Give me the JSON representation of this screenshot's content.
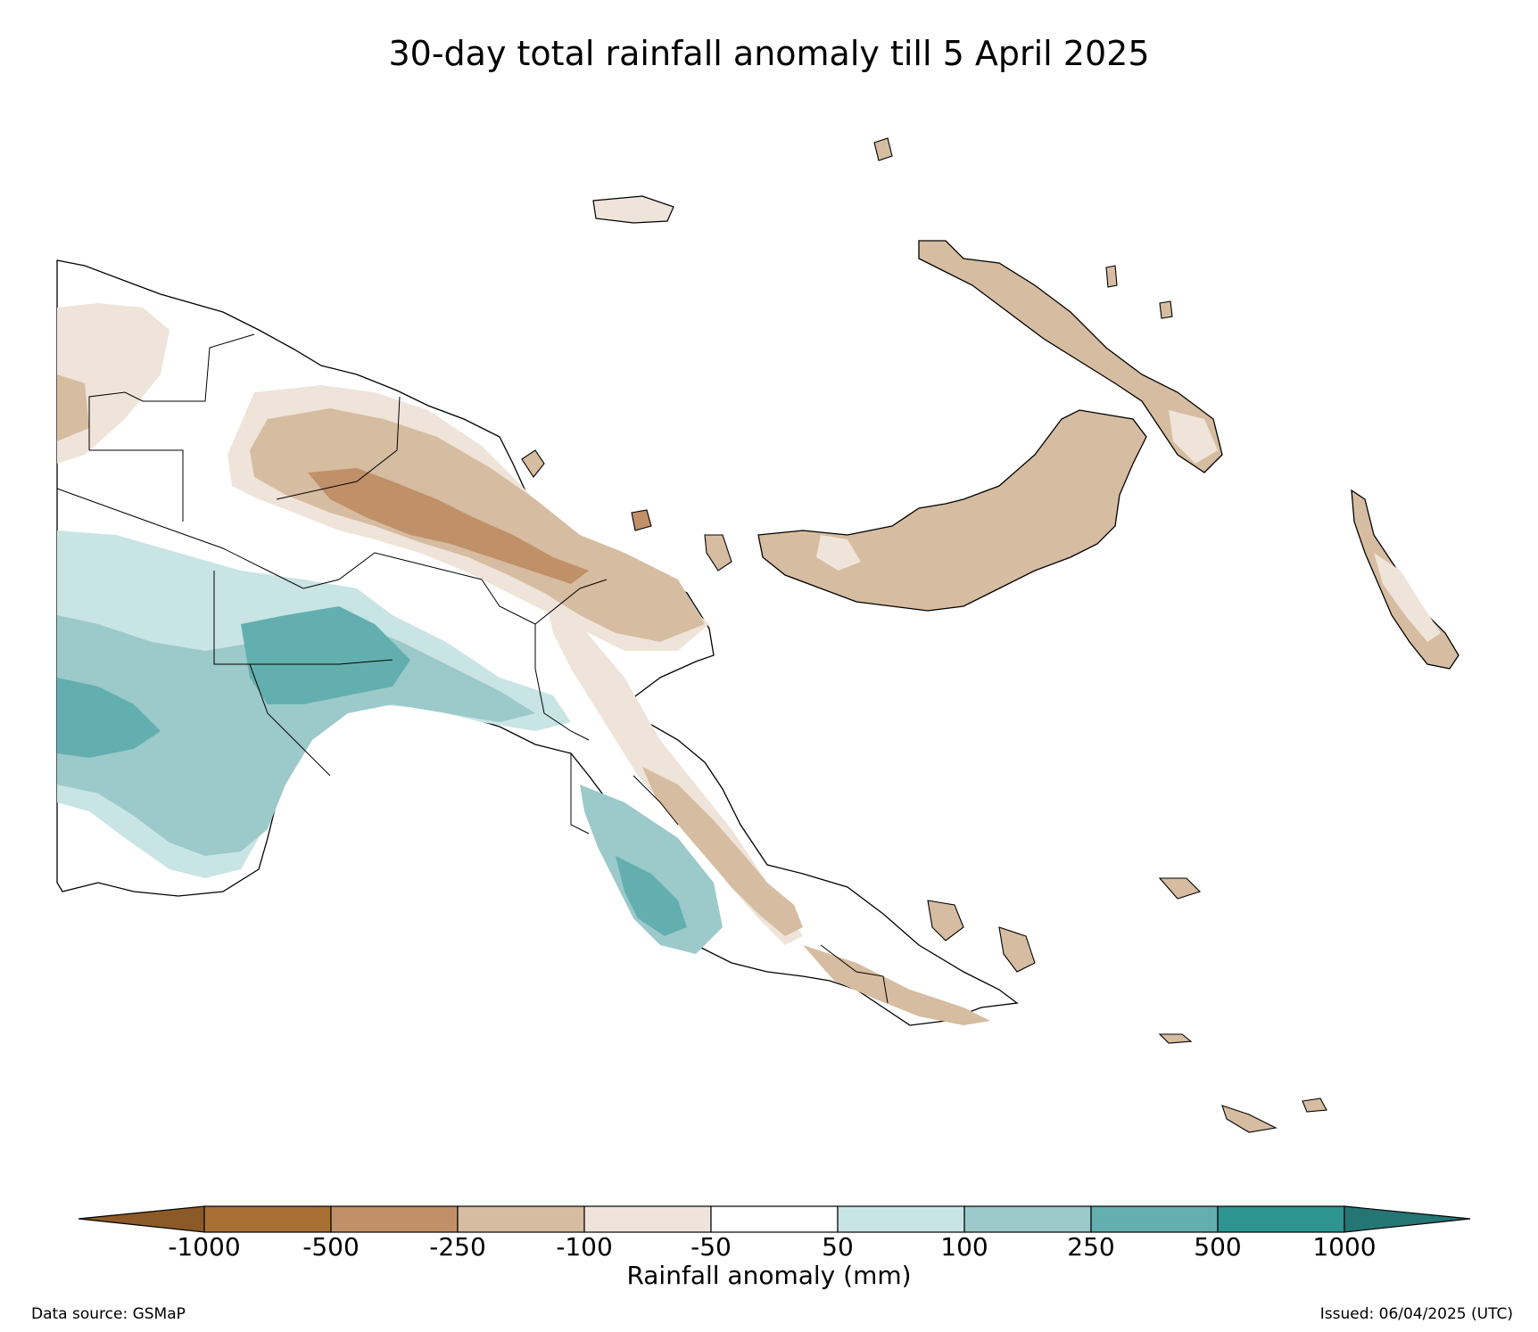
{
  "title": "30-day total rainfall anomaly till 5 April 2025",
  "colorbar": {
    "label": "Rainfall anomaly (mm)",
    "ticks": [
      "-1000",
      "-500",
      "-250",
      "-100",
      "-50",
      "50",
      "100",
      "250",
      "500",
      "1000"
    ],
    "colors": [
      "#8c5a26",
      "#a87035",
      "#c09068",
      "#d6bca0",
      "#efe4d9",
      "#ffffff",
      "#c9e4e4",
      "#9cc9c9",
      "#63afaf",
      "#2c9590",
      "#257574"
    ]
  },
  "footer": {
    "source": "Data source: GSMaP",
    "issued": "Issued: 06/04/2025 (UTC)"
  }
}
